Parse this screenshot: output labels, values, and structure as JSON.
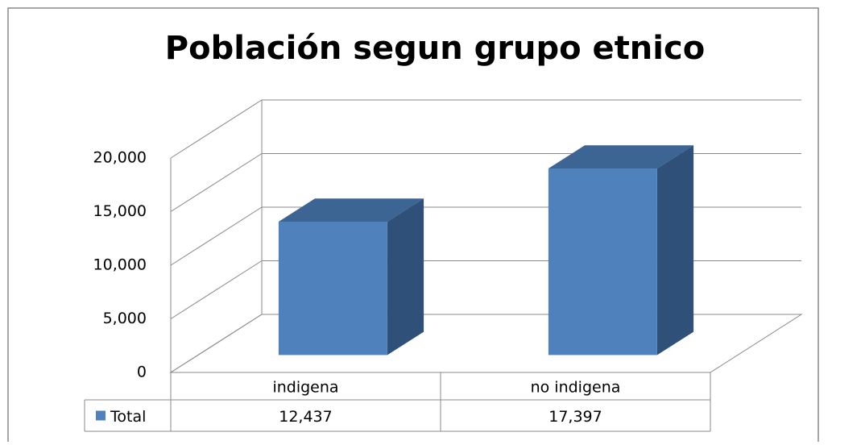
{
  "chart_data": {
    "type": "bar3d",
    "title": "Población segun grupo etnico",
    "categories": [
      "indigena",
      "no indigena"
    ],
    "series": [
      {
        "name": "Total",
        "color": "#4f81bd",
        "values": [
          12437,
          17397
        ],
        "value_labels": [
          "12,437",
          "17,397"
        ]
      }
    ],
    "ylim": [
      0,
      20000
    ],
    "yticks": [
      0,
      {
        "value": 5000,
        "label": "5,000"
      },
      {
        "value": 10000,
        "label": "10,000"
      },
      {
        "value": 15000,
        "label": "15,000"
      },
      {
        "value": 20000,
        "label": "20,000"
      }
    ],
    "grid": true,
    "legend": "table"
  }
}
